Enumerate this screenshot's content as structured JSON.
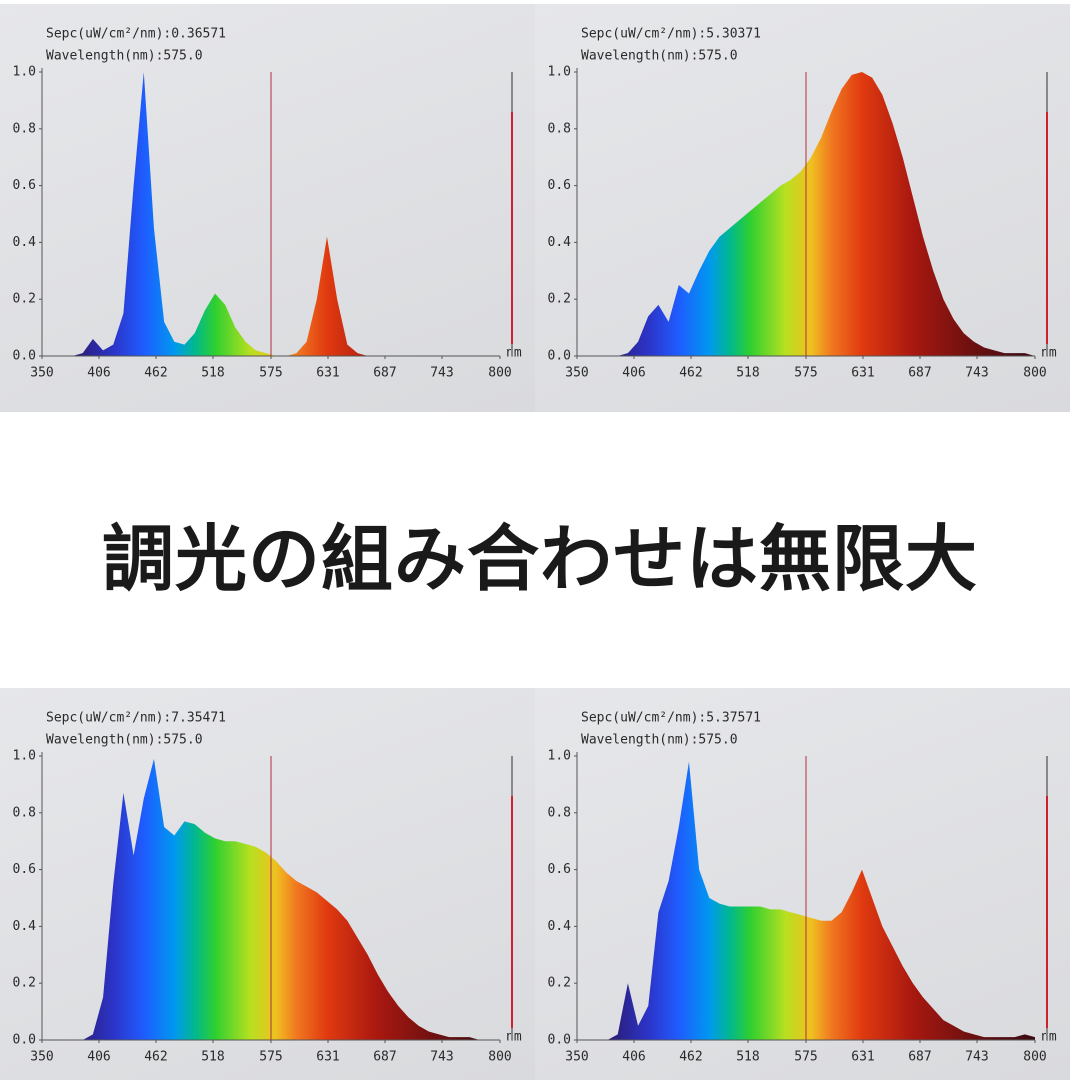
{
  "headline": "調光の組み合わせは無限大",
  "chart_data": [
    {
      "type": "area",
      "info_lines": [
        "Sepc(uW/cm²/nm):0.36571",
        "Wavelength(nm):575.0"
      ],
      "x_unit": "nm",
      "cursor": 575,
      "xlim": [
        350,
        800
      ],
      "ylim": [
        0,
        1
      ],
      "xticks": [
        350,
        406,
        462,
        518,
        575,
        631,
        687,
        743,
        800
      ],
      "yticks": [
        {
          "value": 0,
          "label": "0.0"
        },
        0.2,
        0.4,
        0.6,
        0.8,
        {
          "value": 1,
          "label": "1.0"
        }
      ],
      "x": [
        380,
        390,
        400,
        410,
        420,
        430,
        440,
        450,
        460,
        470,
        480,
        490,
        500,
        510,
        520,
        530,
        540,
        550,
        560,
        570,
        580,
        590,
        600,
        610,
        620,
        630,
        640,
        650,
        660,
        670,
        680,
        690,
        700,
        710,
        720,
        730,
        740,
        750,
        760,
        770,
        780,
        790,
        800
      ],
      "values": [
        0,
        0.01,
        0.06,
        0.02,
        0.04,
        0.15,
        0.6,
        1.0,
        0.45,
        0.12,
        0.05,
        0.04,
        0.08,
        0.16,
        0.22,
        0.18,
        0.1,
        0.05,
        0.02,
        0.01,
        0,
        0,
        0.01,
        0.05,
        0.2,
        0.42,
        0.2,
        0.04,
        0.01,
        0,
        0,
        0,
        0,
        0,
        0,
        0,
        0,
        0,
        0,
        0,
        0,
        0,
        0
      ]
    },
    {
      "type": "area",
      "info_lines": [
        "Sepc(uW/cm²/nm):5.30371",
        "Wavelength(nm):575.0"
      ],
      "x_unit": "nm",
      "cursor": 575,
      "xlim": [
        350,
        800
      ],
      "ylim": [
        0,
        1
      ],
      "xticks": [
        350,
        406,
        462,
        518,
        575,
        631,
        687,
        743,
        800
      ],
      "yticks": [
        {
          "value": 0,
          "label": "0.0"
        },
        0.2,
        0.4,
        0.6,
        0.8,
        {
          "value": 1,
          "label": "1.0"
        }
      ],
      "x": [
        380,
        390,
        400,
        410,
        420,
        430,
        440,
        450,
        460,
        470,
        480,
        490,
        500,
        510,
        520,
        530,
        540,
        550,
        560,
        570,
        580,
        590,
        600,
        610,
        620,
        630,
        640,
        650,
        660,
        670,
        680,
        690,
        700,
        710,
        720,
        730,
        740,
        750,
        760,
        770,
        780,
        790,
        800
      ],
      "values": [
        0,
        0,
        0.01,
        0.05,
        0.14,
        0.18,
        0.12,
        0.25,
        0.22,
        0.3,
        0.37,
        0.42,
        0.45,
        0.48,
        0.51,
        0.54,
        0.57,
        0.6,
        0.62,
        0.65,
        0.7,
        0.77,
        0.86,
        0.94,
        0.99,
        1.0,
        0.98,
        0.92,
        0.82,
        0.7,
        0.56,
        0.42,
        0.3,
        0.2,
        0.13,
        0.08,
        0.05,
        0.03,
        0.02,
        0.01,
        0.01,
        0.01,
        0
      ]
    },
    {
      "type": "area",
      "info_lines": [
        "Sepc(uW/cm²/nm):7.35471",
        "Wavelength(nm):575.0"
      ],
      "x_unit": "nm",
      "cursor": 575,
      "xlim": [
        350,
        800
      ],
      "ylim": [
        0,
        1
      ],
      "xticks": [
        350,
        406,
        462,
        518,
        575,
        631,
        687,
        743,
        800
      ],
      "yticks": [
        {
          "value": 0,
          "label": "0.0"
        },
        0.2,
        0.4,
        0.6,
        0.8,
        {
          "value": 1,
          "label": "1.0"
        }
      ],
      "x": [
        380,
        390,
        400,
        410,
        420,
        430,
        440,
        450,
        460,
        470,
        480,
        490,
        500,
        510,
        520,
        530,
        540,
        550,
        560,
        570,
        580,
        590,
        600,
        610,
        620,
        630,
        640,
        650,
        660,
        670,
        680,
        690,
        700,
        710,
        720,
        730,
        740,
        750,
        760,
        770,
        780,
        790,
        800
      ],
      "values": [
        0,
        0,
        0.02,
        0.15,
        0.55,
        0.87,
        0.65,
        0.85,
        0.99,
        0.75,
        0.72,
        0.77,
        0.76,
        0.73,
        0.71,
        0.7,
        0.7,
        0.69,
        0.68,
        0.66,
        0.63,
        0.59,
        0.56,
        0.54,
        0.52,
        0.49,
        0.46,
        0.42,
        0.36,
        0.3,
        0.23,
        0.17,
        0.12,
        0.08,
        0.05,
        0.03,
        0.02,
        0.01,
        0.01,
        0.01,
        0,
        0,
        0
      ]
    },
    {
      "type": "area",
      "info_lines": [
        "Sepc(uW/cm²/nm):5.37571",
        "Wavelength(nm):575.0"
      ],
      "x_unit": "nm",
      "cursor": 575,
      "xlim": [
        350,
        800
      ],
      "ylim": [
        0,
        1
      ],
      "xticks": [
        350,
        406,
        462,
        518,
        575,
        631,
        687,
        743,
        800
      ],
      "yticks": [
        {
          "value": 0,
          "label": "0.0"
        },
        0.2,
        0.4,
        0.6,
        0.8,
        {
          "value": 1,
          "label": "1.0"
        }
      ],
      "x": [
        380,
        390,
        400,
        410,
        420,
        430,
        440,
        450,
        460,
        470,
        480,
        490,
        500,
        510,
        520,
        530,
        540,
        550,
        560,
        570,
        580,
        590,
        600,
        610,
        620,
        630,
        640,
        650,
        660,
        670,
        680,
        690,
        700,
        710,
        720,
        730,
        740,
        750,
        760,
        770,
        780,
        790,
        800
      ],
      "values": [
        0,
        0.02,
        0.2,
        0.05,
        0.12,
        0.45,
        0.56,
        0.75,
        0.98,
        0.6,
        0.5,
        0.48,
        0.47,
        0.47,
        0.47,
        0.47,
        0.46,
        0.46,
        0.45,
        0.44,
        0.43,
        0.42,
        0.42,
        0.45,
        0.52,
        0.6,
        0.5,
        0.4,
        0.33,
        0.26,
        0.2,
        0.15,
        0.11,
        0.07,
        0.05,
        0.03,
        0.02,
        0.01,
        0.01,
        0.01,
        0.01,
        0.02,
        0.01
      ]
    }
  ]
}
